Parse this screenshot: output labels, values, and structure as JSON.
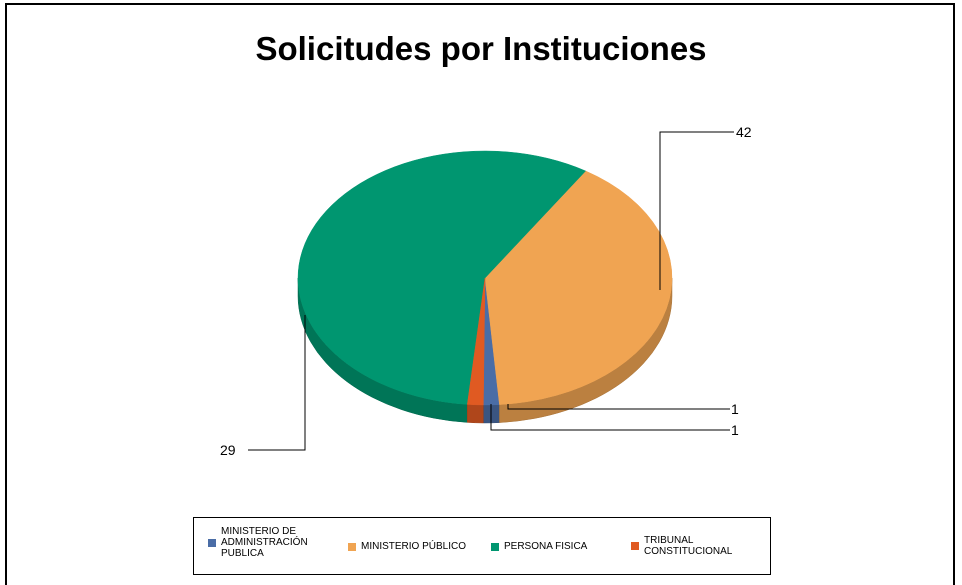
{
  "chart_data": {
    "type": "pie",
    "title": "Solicitudes por Instituciones",
    "categories": [
      "MINISTERIO DE\nADMINISTRACIÓN\nPUBLICA",
      "MINISTERIO PÚBLICO",
      "PERSONA FISICA",
      "TRIBUNAL\nCONSTITUCIONAL"
    ],
    "values": [
      1,
      29,
      42,
      1
    ],
    "data_labels": [
      "1",
      "29",
      "42",
      "1"
    ],
    "colors": [
      "#4A6DA6",
      "#F0A452",
      "#009670",
      "#E05A22"
    ],
    "legend_position": "bottom",
    "style": "3d"
  }
}
